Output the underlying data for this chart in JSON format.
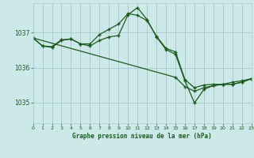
{
  "title": "Graphe pression niveau de la mer (hPa)",
  "bg_color": "#cce8e8",
  "grid_color": "#aacccc",
  "line_color": "#1a5c1a",
  "xlim": [
    0,
    23
  ],
  "ylim": [
    1034.4,
    1037.85
  ],
  "yticks": [
    1035,
    1036,
    1037
  ],
  "xticks": [
    0,
    1,
    2,
    3,
    4,
    5,
    6,
    7,
    8,
    9,
    10,
    11,
    12,
    13,
    14,
    15,
    16,
    17,
    18,
    19,
    20,
    21,
    22,
    23
  ],
  "series1": {
    "x": [
      0,
      1,
      2,
      3,
      4,
      5,
      6,
      7,
      8,
      9,
      10,
      11,
      12,
      13,
      14,
      15,
      16,
      17,
      18,
      19,
      20,
      21,
      22,
      23
    ],
    "y": [
      1036.85,
      1036.62,
      1036.6,
      1036.8,
      1036.82,
      1036.68,
      1036.68,
      1036.95,
      1037.1,
      1037.25,
      1037.55,
      1037.5,
      1037.35,
      1036.9,
      1036.55,
      1036.45,
      1035.65,
      1035.42,
      1035.5,
      1035.52,
      1035.52,
      1035.58,
      1035.62,
      1035.68
    ]
  },
  "series2": {
    "x": [
      0,
      1,
      2,
      3,
      4,
      5,
      6,
      7,
      8,
      9,
      10,
      11,
      12,
      13,
      14,
      15,
      16,
      17,
      18,
      19,
      20,
      21,
      22,
      23
    ],
    "y": [
      1036.85,
      1036.62,
      1036.58,
      1036.78,
      1036.82,
      1036.68,
      1036.62,
      1036.78,
      1036.88,
      1036.92,
      1037.52,
      1037.72,
      1037.38,
      1036.88,
      1036.52,
      1036.38,
      1035.62,
      1034.98,
      1035.38,
      1035.48,
      1035.52,
      1035.52,
      1035.58,
      1035.68
    ]
  },
  "series3": {
    "x": [
      0,
      15,
      16,
      17,
      18,
      19,
      20,
      21,
      22,
      23
    ],
    "y": [
      1036.85,
      1035.72,
      1035.45,
      1035.32,
      1035.42,
      1035.48,
      1035.52,
      1035.52,
      1035.58,
      1035.68
    ]
  }
}
